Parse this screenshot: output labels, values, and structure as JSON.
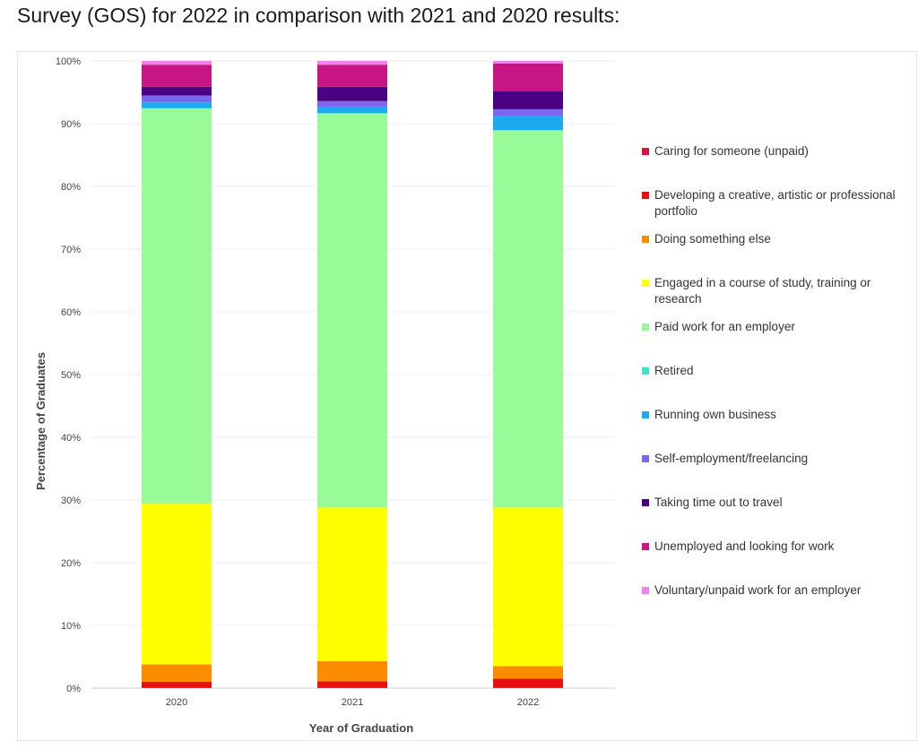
{
  "page": {
    "title": "Survey (GOS) for 2022 in comparison with 2021 and 2020 results:"
  },
  "chart_data": {
    "type": "bar",
    "stacked": true,
    "categories": [
      "2020",
      "2021",
      "2022"
    ],
    "xlabel": "Year of Graduation",
    "ylabel": "Percentage of Graduates",
    "ylim": [
      0,
      100
    ],
    "yticks": [
      "0%",
      "10%",
      "20%",
      "30%",
      "40%",
      "50%",
      "60%",
      "70%",
      "80%",
      "90%",
      "100%"
    ],
    "grid": true,
    "legend_position": "right",
    "series": [
      {
        "name": "Caring for someone (unpaid)",
        "color": "#dc143c",
        "values": [
          0.1,
          0.1,
          0.1
        ]
      },
      {
        "name": "Developing a creative, artistic or professional portfolio",
        "color": "#e81010",
        "values": [
          0.9,
          1.0,
          1.4
        ]
      },
      {
        "name": "Doing something else",
        "color": "#fb8c00",
        "values": [
          2.8,
          3.2,
          2.0
        ]
      },
      {
        "name": "Engaged in a course of study, training or research",
        "color": "#ffff00",
        "values": [
          25.6,
          24.5,
          25.3
        ]
      },
      {
        "name": "Paid work for an employer",
        "color": "#98fb98",
        "values": [
          63.0,
          62.8,
          60.1
        ]
      },
      {
        "name": "Retired",
        "color": "#40e0d0",
        "values": [
          0.1,
          0.1,
          0.1
        ]
      },
      {
        "name": "Running own business",
        "color": "#1eaaf1",
        "values": [
          0.9,
          0.9,
          2.2
        ]
      },
      {
        "name": "Self-employment/freelancing",
        "color": "#7b68ee",
        "values": [
          1.1,
          1.0,
          1.1
        ]
      },
      {
        "name": "Taking time out to travel",
        "color": "#4b0082",
        "values": [
          1.4,
          2.3,
          2.9
        ]
      },
      {
        "name": "Unemployed and looking for work",
        "color": "#c71585",
        "values": [
          3.5,
          3.5,
          4.4
        ]
      },
      {
        "name": "Voluntary/unpaid work for an employer",
        "color": "#ee82ee",
        "values": [
          0.6,
          0.6,
          0.4
        ]
      }
    ]
  }
}
